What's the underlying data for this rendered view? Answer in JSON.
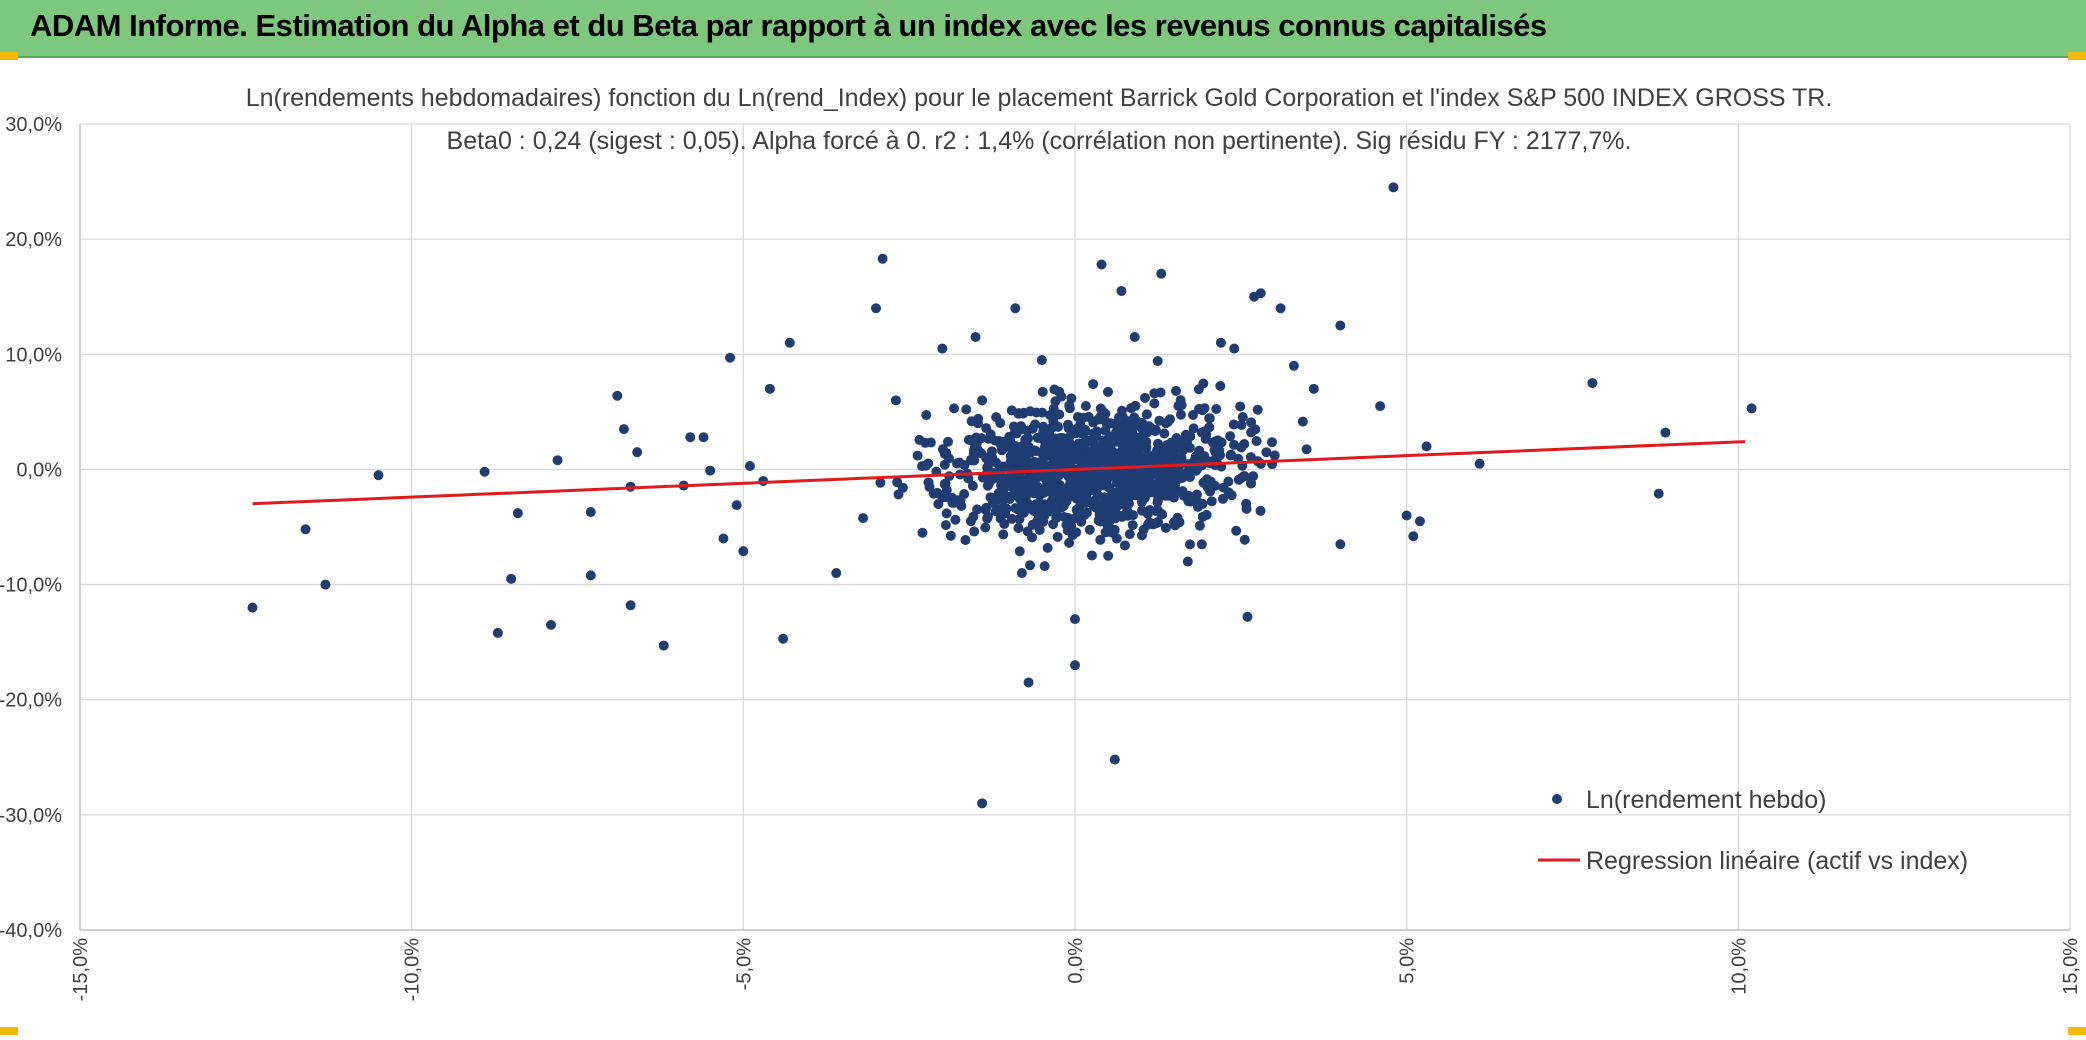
{
  "header": {
    "title": "ADAM Informe. Estimation du Alpha et du Beta par rapport à un index avec les revenus connus capitalisés"
  },
  "colors": {
    "header_bg": "#7dc87c",
    "points": "#1f3d73",
    "regression": "#e31a1c",
    "grid": "#d9d9d9"
  },
  "chart_data": {
    "type": "scatter",
    "title": "Ln(rendements hebdomadaires) fonction du Ln(rend_Index) pour le placement Barrick Gold Corporation et l'index S&P 500 INDEX GROSS TR.",
    "subtitle": "Beta0 : 0,24 (sigest : 0,05). Alpha forcé à 0. r2 : 1,4% (corrélation non pertinente). Sig résidu FY : 2177,7%.",
    "xlim": [
      -0.15,
      0.15
    ],
    "ylim": [
      -0.4,
      0.3
    ],
    "x_ticks": [
      "-15,0%",
      "-10,0%",
      "-5,0%",
      "0,0%",
      "5,0%",
      "10,0%",
      "15,0%"
    ],
    "y_ticks": [
      "30,0%",
      "20,0%",
      "10,0%",
      "0,0%",
      "-10,0%",
      "-20,0%",
      "-30,0%",
      "-40,0%"
    ],
    "grid": true,
    "legend_position": "bottom-right",
    "series": [
      {
        "name": "Ln(rendement hebdo)",
        "kind": "scatter",
        "points": [
          [
            -0.124,
            -0.12
          ],
          [
            -0.116,
            -0.052
          ],
          [
            -0.113,
            -0.1
          ],
          [
            -0.105,
            -0.005
          ],
          [
            -0.089,
            -0.002
          ],
          [
            -0.087,
            -0.142
          ],
          [
            -0.085,
            -0.095
          ],
          [
            -0.084,
            -0.038
          ],
          [
            -0.078,
            0.008
          ],
          [
            -0.079,
            -0.135
          ],
          [
            -0.073,
            -0.037
          ],
          [
            -0.073,
            -0.092
          ],
          [
            -0.069,
            0.064
          ],
          [
            -0.068,
            0.035
          ],
          [
            -0.067,
            -0.015
          ],
          [
            -0.067,
            -0.118
          ],
          [
            -0.066,
            0.015
          ],
          [
            -0.062,
            -0.153
          ],
          [
            -0.059,
            -0.014
          ],
          [
            -0.058,
            0.028
          ],
          [
            -0.056,
            0.028
          ],
          [
            -0.055,
            -0.001
          ],
          [
            -0.053,
            -0.06
          ],
          [
            -0.052,
            0.097
          ],
          [
            -0.051,
            -0.031
          ],
          [
            -0.049,
            0.003
          ],
          [
            -0.05,
            -0.071
          ],
          [
            -0.047,
            -0.01
          ],
          [
            -0.046,
            0.07
          ],
          [
            -0.044,
            -0.147
          ],
          [
            -0.043,
            0.11
          ],
          [
            -0.036,
            -0.09
          ],
          [
            -0.029,
            0.183
          ],
          [
            -0.03,
            0.14
          ],
          [
            -0.027,
            0.06
          ],
          [
            -0.023,
            -0.055
          ],
          [
            -0.02,
            0.105
          ],
          [
            -0.015,
            0.115
          ],
          [
            -0.014,
            -0.29
          ],
          [
            -0.014,
            0.06
          ],
          [
            -0.009,
            0.14
          ],
          [
            -0.008,
            -0.09
          ],
          [
            -0.007,
            -0.185
          ],
          [
            -0.005,
            0.095
          ],
          [
            0.0,
            -0.13
          ],
          [
            0.0,
            -0.17
          ],
          [
            0.004,
            0.178
          ],
          [
            0.005,
            -0.075
          ],
          [
            0.006,
            -0.252
          ],
          [
            0.007,
            0.155
          ],
          [
            0.009,
            0.115
          ],
          [
            0.013,
            0.17
          ],
          [
            0.017,
            -0.08
          ],
          [
            0.022,
            0.11
          ],
          [
            0.024,
            0.105
          ],
          [
            0.026,
            -0.128
          ],
          [
            0.027,
            0.15
          ],
          [
            0.028,
            0.153
          ],
          [
            0.031,
            0.14
          ],
          [
            0.033,
            0.09
          ],
          [
            0.036,
            0.07
          ],
          [
            0.04,
            0.125
          ],
          [
            0.04,
            -0.065
          ],
          [
            0.046,
            0.055
          ],
          [
            0.048,
            0.245
          ],
          [
            0.05,
            -0.04
          ],
          [
            0.051,
            -0.058
          ],
          [
            0.052,
            -0.045
          ],
          [
            0.053,
            0.02
          ],
          [
            0.061,
            0.005
          ],
          [
            0.078,
            0.075
          ],
          [
            0.088,
            -0.021
          ],
          [
            0.089,
            0.032
          ],
          [
            0.102,
            0.053
          ]
        ]
      },
      {
        "name": "Regression linéaire (actif vs index)",
        "kind": "line",
        "points": [
          [
            -0.124,
            -0.0298
          ],
          [
            0.101,
            0.0242
          ]
        ]
      }
    ]
  }
}
